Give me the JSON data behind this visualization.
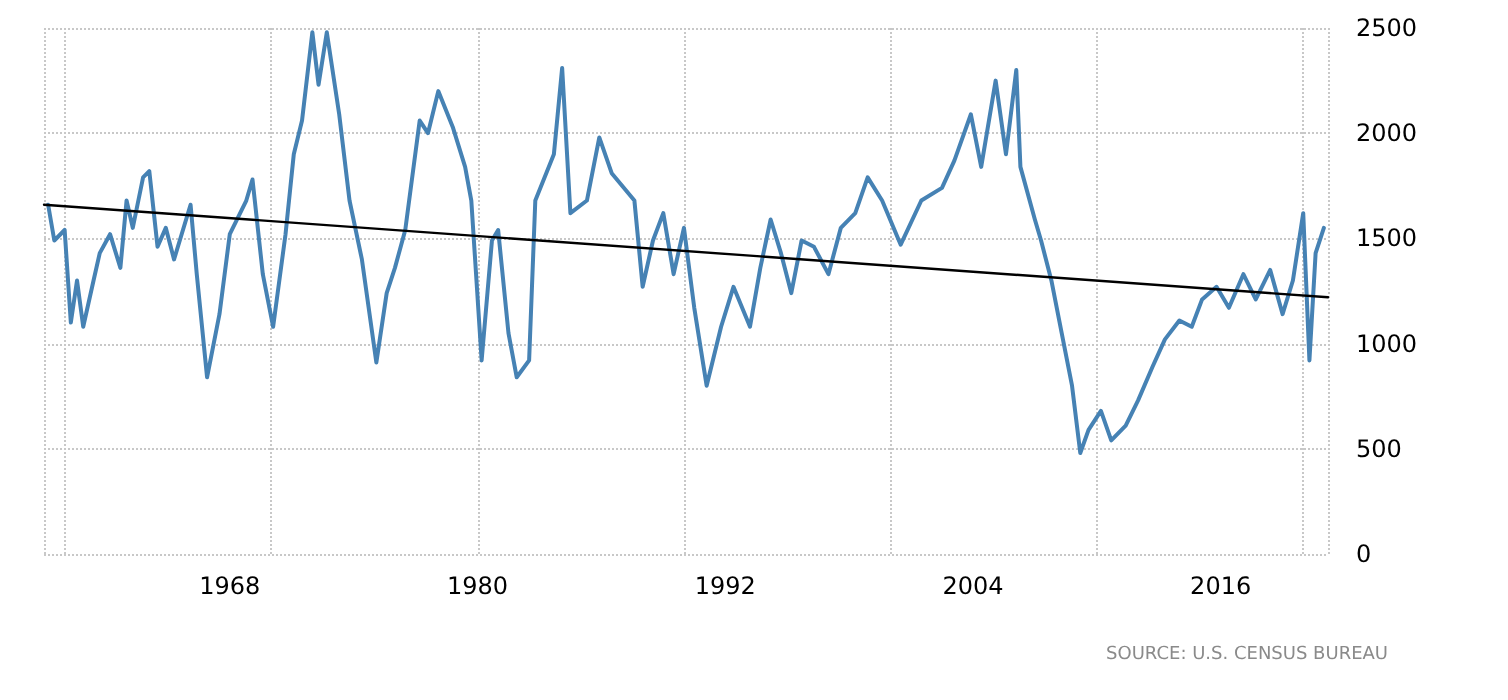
{
  "chart_data": {
    "type": "line",
    "xlim": [
      1959,
      2021.2
    ],
    "xticks": [
      1968,
      1980,
      1992,
      2004,
      2016
    ],
    "ylim": [
      0,
      2500
    ],
    "yticks": [
      0,
      500,
      1000,
      1500,
      2000,
      2500
    ],
    "grid": true,
    "marker": "none",
    "line_style": "solid",
    "annotations": [
      "SOURCE: U.S. CENSUS BUREAU"
    ],
    "series": [
      {
        "color": "#4682b4",
        "x": [
          1959.2,
          1959.5,
          1960.0,
          1960.3,
          1960.6,
          1960.9,
          1961.4,
          1961.7,
          1962.2,
          1962.7,
          1963.0,
          1963.3,
          1963.8,
          1964.1,
          1964.5,
          1964.9,
          1965.3,
          1966.1,
          1966.4,
          1966.9,
          1967.5,
          1968.0,
          1968.8,
          1969.1,
          1969.6,
          1970.1,
          1970.7,
          1971.1,
          1971.5,
          1972.0,
          1972.3,
          1972.7,
          1973.3,
          1973.8,
          1974.4,
          1975.1,
          1975.6,
          1976.0,
          1976.5,
          1977.2,
          1977.6,
          1978.1,
          1978.8,
          1979.4,
          1979.7,
          1980.2,
          1980.7,
          1981.0,
          1981.5,
          1981.9,
          1982.5,
          1982.8,
          1983.7,
          1984.1,
          1984.5,
          1985.3,
          1985.9,
          1986.5,
          1987.6,
          1988.0,
          1988.5,
          1989.0,
          1989.5,
          1990.0,
          1990.5,
          1991.1,
          1991.8,
          1992.4,
          1993.2,
          1993.7,
          1994.2,
          1994.7,
          1995.2,
          1995.7,
          1996.3,
          1997.0,
          1997.6,
          1998.3,
          1998.9,
          1999.6,
          2000.5,
          2001.5,
          2002.5,
          2003.1,
          2003.9,
          2004.4,
          2005.1,
          2005.6,
          2006.1,
          2006.3,
          2007.0,
          2007.3,
          2007.8,
          2008.3,
          2008.8,
          2009.2,
          2009.6,
          2010.2,
          2010.7,
          2011.4,
          2012.0,
          2012.7,
          2013.3,
          2014.0,
          2014.6,
          2015.1,
          2015.8,
          2016.4,
          2017.1,
          2017.7,
          2018.4,
          2019.0,
          2019.5,
          2020.0,
          2020.3,
          2020.6,
          2021.0
        ],
        "values": [
          1660,
          1490,
          1540,
          1100,
          1300,
          1080,
          1300,
          1430,
          1520,
          1360,
          1680,
          1550,
          1790,
          1820,
          1460,
          1550,
          1400,
          1660,
          1330,
          840,
          1140,
          1520,
          1680,
          1780,
          1330,
          1080,
          1520,
          1900,
          2060,
          2480,
          2230,
          2480,
          2090,
          1680,
          1400,
          910,
          1240,
          1360,
          1540,
          2060,
          2000,
          2200,
          2030,
          1840,
          1680,
          920,
          1490,
          1540,
          1050,
          840,
          920,
          1680,
          1900,
          2310,
          1620,
          1680,
          1980,
          1810,
          1680,
          1270,
          1490,
          1620,
          1330,
          1550,
          1170,
          800,
          1080,
          1270,
          1080,
          1360,
          1590,
          1430,
          1240,
          1490,
          1460,
          1330,
          1550,
          1620,
          1790,
          1680,
          1470,
          1680,
          1740,
          1870,
          2090,
          1840,
          2250,
          1900,
          2300,
          1840,
          1590,
          1490,
          1300,
          1050,
          800,
          480,
          590,
          680,
          540,
          610,
          730,
          890,
          1020,
          1110,
          1080,
          1210,
          1270,
          1170,
          1330,
          1210,
          1350,
          1140,
          1300,
          1620,
          920,
          1430,
          1550
        ]
      },
      {
        "type": "line",
        "color": "#000000",
        "x": [
          1959.0,
          2021.2
        ],
        "values": [
          1660,
          1220
        ]
      }
    ]
  }
}
